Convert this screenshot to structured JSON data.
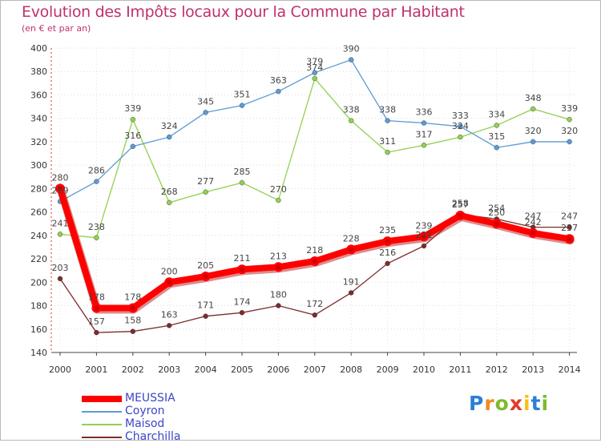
{
  "title": "Evolution des Impôts locaux pour la Commune par Habitant",
  "subtitle": "(en € et par an)",
  "logo": {
    "letters": [
      "P",
      "r",
      "o",
      "x",
      "i",
      "t",
      "i"
    ],
    "colors": [
      "#2b7fd6",
      "#f08a1c",
      "#7dbb2c",
      "#e2392c",
      "#f2c21a",
      "#2b7fd6",
      "#7dbb2c"
    ]
  },
  "chart_data": {
    "type": "line",
    "title": "Evolution des Impôts locaux pour la Commune par Habitant",
    "subtitle": "(en € et par an)",
    "x": [
      "2000",
      "2001",
      "2002",
      "2003",
      "2004",
      "2005",
      "2006",
      "2007",
      "2008",
      "2009",
      "2010",
      "2011",
      "2012",
      "2013",
      "2014"
    ],
    "ylim": [
      140,
      400
    ],
    "yticks": [
      140,
      160,
      180,
      200,
      220,
      240,
      260,
      280,
      300,
      320,
      340,
      360,
      380,
      400
    ],
    "grid": true,
    "legend_position": "bottom-left",
    "series": [
      {
        "name": "MEUSSIA",
        "color": "#ff0000",
        "emphasis": true,
        "values": [
          280,
          178,
          178,
          200,
          205,
          211,
          213,
          218,
          228,
          235,
          239,
          257,
          250,
          242,
          237
        ],
        "labels": [
          "280",
          "178",
          "178",
          "200",
          "205",
          "211",
          "213",
          "218",
          "228",
          "235",
          "239",
          "257",
          "250",
          "242",
          "237"
        ]
      },
      {
        "name": "Coyron",
        "color": "#5b9bd5",
        "values": [
          269,
          286,
          316,
          324,
          345,
          351,
          363,
          379,
          390,
          338,
          336,
          333,
          315,
          320,
          320
        ],
        "labels": [
          "269",
          "286",
          "316",
          "324",
          "345",
          "351",
          "363",
          "379",
          "390",
          "338",
          "336",
          "333",
          "315",
          "320",
          "320"
        ]
      },
      {
        "name": "Maisod",
        "color": "#92d050",
        "values": [
          241,
          238,
          339,
          268,
          277,
          285,
          270,
          374,
          338,
          311,
          317,
          324,
          334,
          348,
          339
        ],
        "labels": [
          "241",
          "238",
          "339",
          "268",
          "277",
          "285",
          "270",
          "374",
          "338",
          "311",
          "317",
          "324",
          "334",
          "348",
          "339"
        ]
      },
      {
        "name": "Charchilla",
        "color": "#7b2c2c",
        "values": [
          203,
          157,
          158,
          163,
          171,
          174,
          180,
          172,
          191,
          216,
          231,
          258,
          254,
          247,
          247
        ],
        "labels": [
          "203",
          "157",
          "158",
          "163",
          "171",
          "174",
          "180",
          "172",
          "191",
          "216",
          "231",
          "258",
          "254",
          "247",
          "247"
        ]
      }
    ]
  }
}
